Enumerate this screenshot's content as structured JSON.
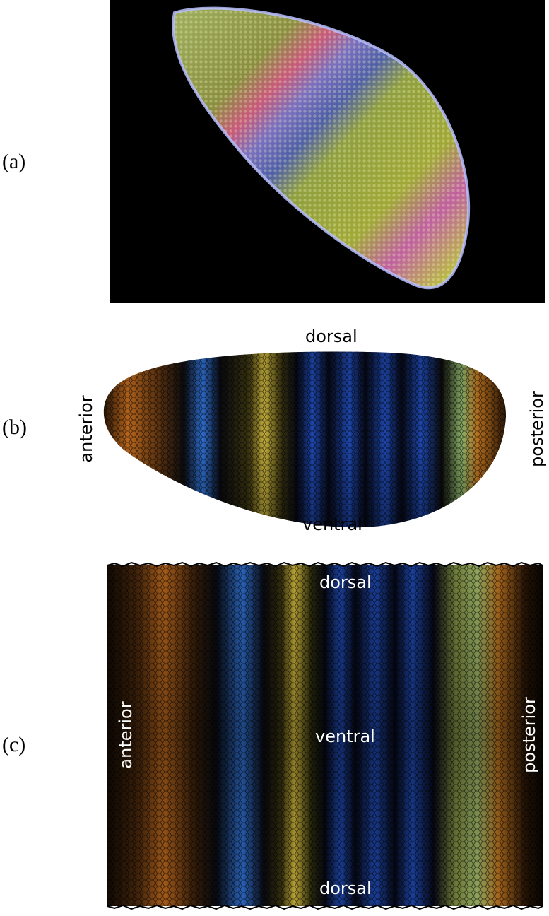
{
  "panels": [
    {
      "label": "(a)"
    },
    {
      "label": "(b)",
      "top": "dorsal",
      "bottom": "ventral",
      "left": "anterior",
      "right": "posterior"
    },
    {
      "label": "(c)",
      "top": "dorsal",
      "middle": "ventral",
      "bottom": "dorsal",
      "left": "anterior",
      "right": "posterior"
    }
  ],
  "colors": {
    "background_dark": "#000000",
    "orange": "#c8701e",
    "blue": "#2a62c8",
    "yellow": "#d8c040",
    "green": "#8ec06a",
    "pink": "#e05890"
  }
}
